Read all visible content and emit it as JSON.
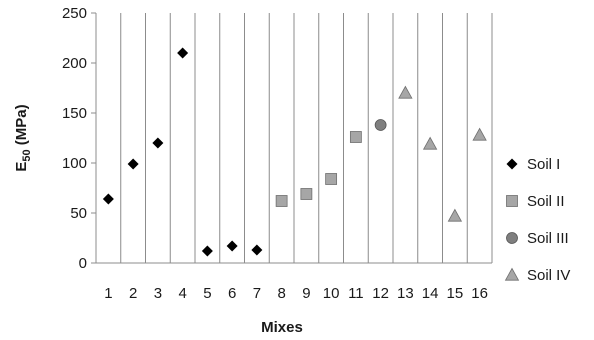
{
  "chart_data": {
    "type": "scatter",
    "title": "",
    "xlabel": "Mixes",
    "ylabel": {
      "base": "E",
      "sub": "50",
      "unit": " (MPa)"
    },
    "x_ticks": [
      "1",
      "2",
      "3",
      "4",
      "5",
      "6",
      "7",
      "8",
      "9",
      "10",
      "11",
      "12",
      "13",
      "14",
      "15",
      "16"
    ],
    "xlim": [
      0.5,
      16.5
    ],
    "ylim": [
      0,
      250
    ],
    "y_ticks": [
      0,
      50,
      100,
      150,
      200,
      250
    ],
    "grid": {
      "vertical": true,
      "horizontal": false
    },
    "legend_position": "right",
    "series": [
      {
        "name": "Soil I",
        "marker": "diamond",
        "color": "#000000",
        "points": [
          [
            1,
            64
          ],
          [
            2,
            99
          ],
          [
            3,
            120
          ],
          [
            4,
            210
          ],
          [
            5,
            12
          ],
          [
            6,
            17
          ],
          [
            7,
            13
          ]
        ]
      },
      {
        "name": "Soil II",
        "marker": "square",
        "color": "#a6a6a6",
        "points": [
          [
            8,
            62
          ],
          [
            9,
            69
          ],
          [
            10,
            84
          ],
          [
            11,
            126
          ]
        ]
      },
      {
        "name": "Soil III",
        "marker": "circle",
        "color": "#7f7f7f",
        "points": [
          [
            12,
            138
          ]
        ]
      },
      {
        "name": "Soil IV",
        "marker": "triangle",
        "color": "#a6a6a6",
        "points": [
          [
            13,
            170
          ],
          [
            14,
            119
          ],
          [
            15,
            47
          ],
          [
            16,
            128
          ]
        ]
      }
    ]
  }
}
